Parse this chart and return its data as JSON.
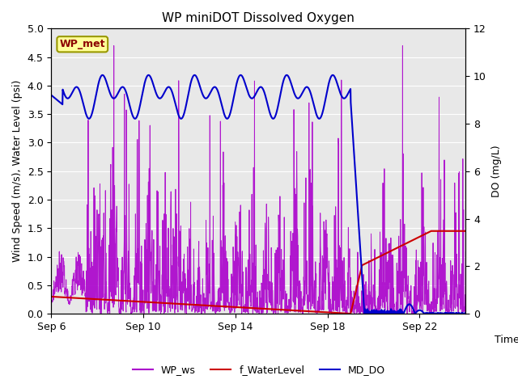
{
  "title": "WP miniDOT Dissolved Oxygen",
  "ylabel_left": "Wind Speed (m/s), Water Level (psi)",
  "ylabel_right": "DO (mg/L)",
  "xlabel": "Time",
  "ylim_left": [
    0.0,
    5.0
  ],
  "ylim_right": [
    0,
    12
  ],
  "yticks_left": [
    0.0,
    0.5,
    1.0,
    1.5,
    2.0,
    2.5,
    3.0,
    3.5,
    4.0,
    4.5,
    5.0
  ],
  "yticks_right": [
    0,
    2,
    4,
    6,
    8,
    10,
    12
  ],
  "xtick_labels": [
    "Sep 6",
    "Sep 10",
    "Sep 14",
    "Sep 18",
    "Sep 22"
  ],
  "annotation_text": "WP_met",
  "annotation_color": "#8B0000",
  "annotation_bg": "#FFFF99",
  "annotation_edge": "#999900",
  "line_wp_ws_color": "#AA00CC",
  "line_water_level_color": "#CC0000",
  "line_do_color": "#0000CC",
  "legend_labels": [
    "WP_ws",
    "f_WaterLevel",
    "MD_DO"
  ],
  "bg_color": "#E8E8E8",
  "title_fontsize": 11,
  "axis_label_fontsize": 9,
  "tick_fontsize": 9,
  "legend_fontsize": 9,
  "xlim": [
    0,
    18
  ],
  "xtick_positions": [
    0,
    4,
    8,
    12,
    16
  ]
}
